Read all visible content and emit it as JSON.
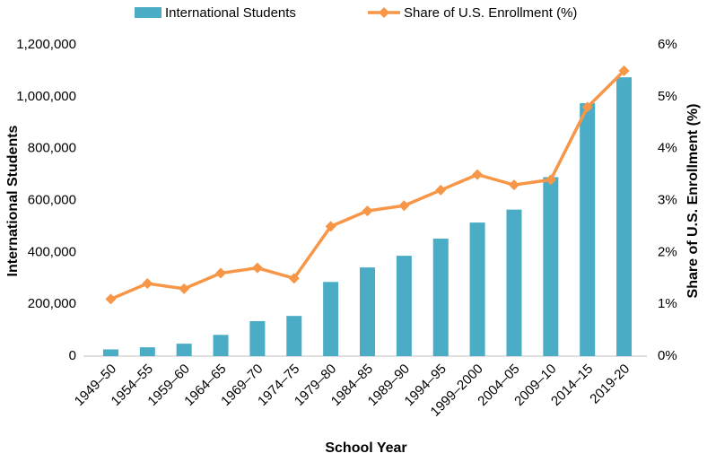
{
  "chart_data": {
    "type": "bar-line",
    "x_label": "School Year",
    "y_label": "International Students",
    "y2_label": "Share of U.S. Enrollment (%)",
    "categories": [
      "1949–50",
      "1954–55",
      "1959–60",
      "1964–65",
      "1969–70",
      "1974–75",
      "1979–80",
      "1984–85",
      "1989–90",
      "1994–95",
      "1999–2000",
      "2004–05",
      "2009–10",
      "2014–15",
      "2019-20"
    ],
    "series": [
      {
        "name": "International Students",
        "color": "#4bacc6",
        "type": "bar",
        "values": [
          26000,
          34000,
          48000,
          82000,
          135000,
          155000,
          286000,
          342000,
          387000,
          453000,
          515000,
          565000,
          690000,
          975000,
          1075000
        ]
      },
      {
        "name": "Share of U.S. Enrollment (%)",
        "color": "#f79646",
        "type": "line",
        "axis": "y2",
        "values": [
          1.1,
          1.4,
          1.3,
          1.6,
          1.7,
          1.5,
          2.5,
          2.8,
          2.9,
          3.2,
          3.5,
          3.3,
          3.4,
          4.8,
          5.5
        ]
      }
    ],
    "ylim": [
      0,
      1200000
    ],
    "yticks": [
      0,
      {
        "value": 200000,
        "label": "200,000"
      },
      {
        "value": 400000,
        "label": "400,000"
      },
      {
        "value": 600000,
        "label": "600,000"
      },
      {
        "value": 800000,
        "label": "800,000"
      },
      {
        "value": 1000000,
        "label": "1,000,000"
      },
      {
        "value": 1200000,
        "label": "1,200,000"
      }
    ],
    "y2lim": [
      0,
      6
    ],
    "y2ticks": [
      {
        "value": 0,
        "label": "0%"
      },
      {
        "value": 1,
        "label": "1%"
      },
      {
        "value": 2,
        "label": "2%"
      },
      {
        "value": 3,
        "label": "3%"
      },
      {
        "value": 4,
        "label": "4%"
      },
      {
        "value": 5,
        "label": "5%"
      },
      {
        "value": 6,
        "label": "6%"
      }
    ],
    "legend": "top"
  }
}
